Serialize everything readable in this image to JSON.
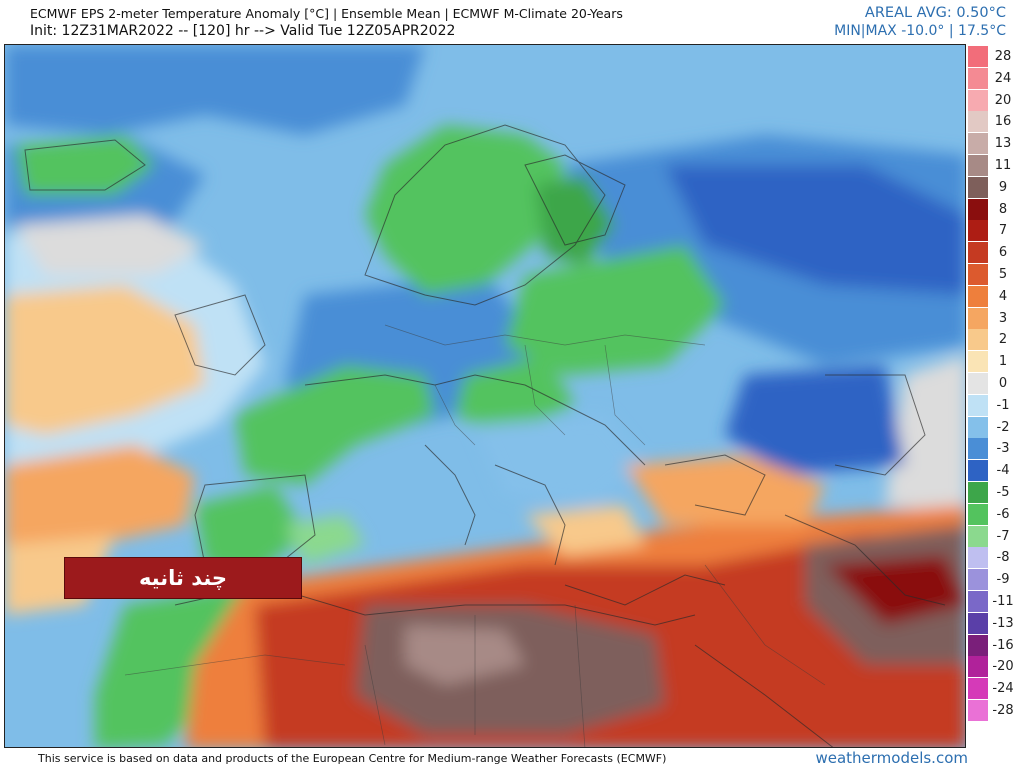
{
  "header": {
    "title_line_1": "ECMWF EPS 2-meter Temperature Anomaly [°C] | Ensemble Mean | ECMWF M-Climate 20-Years",
    "title_line_2": "Init: 12Z31MAR2022 -- [120] hr --> Valid Tue 12Z05APR2022",
    "areal_avg": "AREAL AVG: 0.50°C",
    "min_max": "MIN|MAX -10.0° | 17.5°C"
  },
  "caption": {
    "text": "چند ثانیه"
  },
  "footer": {
    "attribution": "This service is based on data and products of the European Centre for Medium-range Weather Forecasts (ECMWF)",
    "site": "weathermodels.com"
  },
  "legend": {
    "labels": [
      "28",
      "24",
      "20",
      "16",
      "13",
      "11",
      "9",
      "8",
      "7",
      "6",
      "5",
      "4",
      "3",
      "2",
      "1",
      "0",
      "-1",
      "-2",
      "-3",
      "-4",
      "-5",
      "-6",
      "-7",
      "-8",
      "-9",
      "-11",
      "-13",
      "-16",
      "-20",
      "-24",
      "-28"
    ],
    "colors": [
      "#f26d7a",
      "#f48a93",
      "#f7aab0",
      "#e2c9c4",
      "#c8aca8",
      "#a78a86",
      "#7e5f5b",
      "#8a0e0e",
      "#ad1d14",
      "#c53a22",
      "#dc5a2e",
      "#ee7f3c",
      "#f5a661",
      "#f8c98b",
      "#fae4b5",
      "#e4e4e4",
      "#bfe1f5",
      "#84c0ea",
      "#4a8ed6",
      "#2e63c4",
      "#3da64a",
      "#53c35e",
      "#8bd98e",
      "#bfbff0",
      "#9b92dc",
      "#7a68c8",
      "#5a3fa8",
      "#7a1f7a",
      "#b0229a",
      "#d53ab8",
      "#ea71d6"
    ]
  }
}
